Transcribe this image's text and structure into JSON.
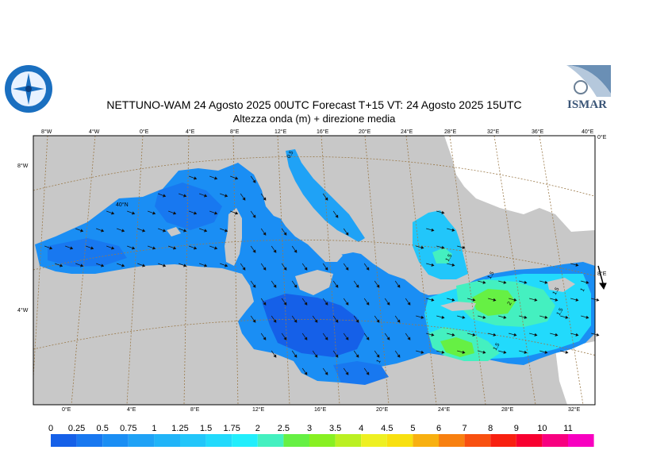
{
  "header": {
    "title_line1": "NETTUNO-WAM  24   Agosto  2025 00UTC Forecast T+15 VT: 24   Agosto  2025 15UTC",
    "title_line2": "Altezza onda (m) + direzione media"
  },
  "logos": {
    "left_name": "nettuno-logo",
    "right_text": "ISMAR"
  },
  "map": {
    "land_color": "#c8c8c8",
    "grid_color": "#9b7a4a",
    "top_lon_labels": [
      "8°W",
      "4°W",
      "0°E",
      "4°E",
      "8°E",
      "12°E",
      "16°E",
      "20°E",
      "24°E",
      "28°E",
      "32°E",
      "36°E",
      "40°E"
    ],
    "bottom_lon_labels": [
      "0°E",
      "4°E",
      "8°E",
      "12°E",
      "16°E",
      "20°E",
      "24°E",
      "28°E",
      "32°E"
    ],
    "left_lat_labels": [
      "8°W",
      "4°W"
    ],
    "right_lat_labels": [
      "0°E",
      "8°E"
    ],
    "inner_label": "40°N",
    "contour_labels": [
      "0.5",
      "1.5",
      "1.5",
      "1.5",
      "2",
      "1.5",
      "1.5",
      "1",
      "1"
    ]
  },
  "legend": {
    "labels": [
      "0",
      "0.25",
      "0.5",
      "0.75",
      "1",
      "1.25",
      "1.5",
      "1.75",
      "2",
      "2.5",
      "3",
      "3.5",
      "4",
      "4.5",
      "5",
      "6",
      "7",
      "8",
      "9",
      "10",
      "11"
    ],
    "colors": [
      "#1560e8",
      "#1878f0",
      "#1a8ef4",
      "#1fa2f6",
      "#20b4f8",
      "#22c6fa",
      "#22dafc",
      "#22eefc",
      "#44f0c0",
      "#66f044",
      "#88f022",
      "#bbf022",
      "#eef022",
      "#f8e010",
      "#f8b010",
      "#f88010",
      "#f85010",
      "#f82010",
      "#f80030",
      "#f80080",
      "#f800c0"
    ]
  }
}
